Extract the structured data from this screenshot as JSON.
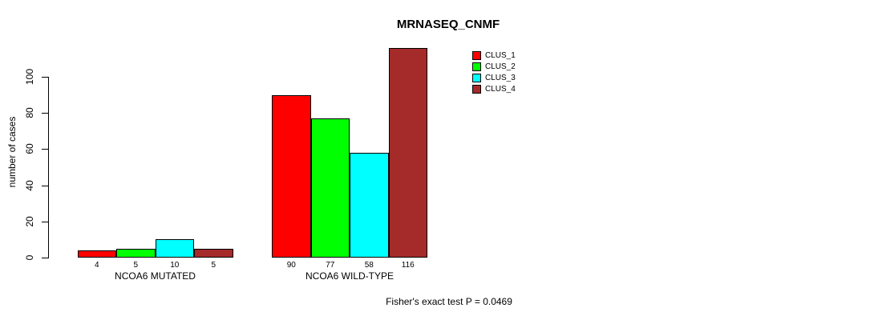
{
  "chart_data": {
    "type": "bar",
    "title": "MRNASEQ_CNMF",
    "ylabel": "number of cases",
    "xlabel": "",
    "ylim": [
      0,
      116
    ],
    "yticks": [
      0,
      20,
      40,
      60,
      80,
      100
    ],
    "grid": false,
    "legend_position": "top-right",
    "categories": [
      "NCOA6 MUTATED",
      "NCOA6 WILD-TYPE"
    ],
    "series": [
      {
        "name": "CLUS_1",
        "color": "#FF0000",
        "values": [
          4,
          90
        ]
      },
      {
        "name": "CLUS_2",
        "color": "#00FF00",
        "values": [
          5,
          77
        ]
      },
      {
        "name": "CLUS_3",
        "color": "#00FFFF",
        "values": [
          10,
          58
        ]
      },
      {
        "name": "CLUS_4",
        "color": "#A52A2A",
        "values": [
          5,
          116
        ]
      }
    ],
    "bar_value_labels_shown": true,
    "annotation": "Fisher's exact test P = 0.0469"
  }
}
